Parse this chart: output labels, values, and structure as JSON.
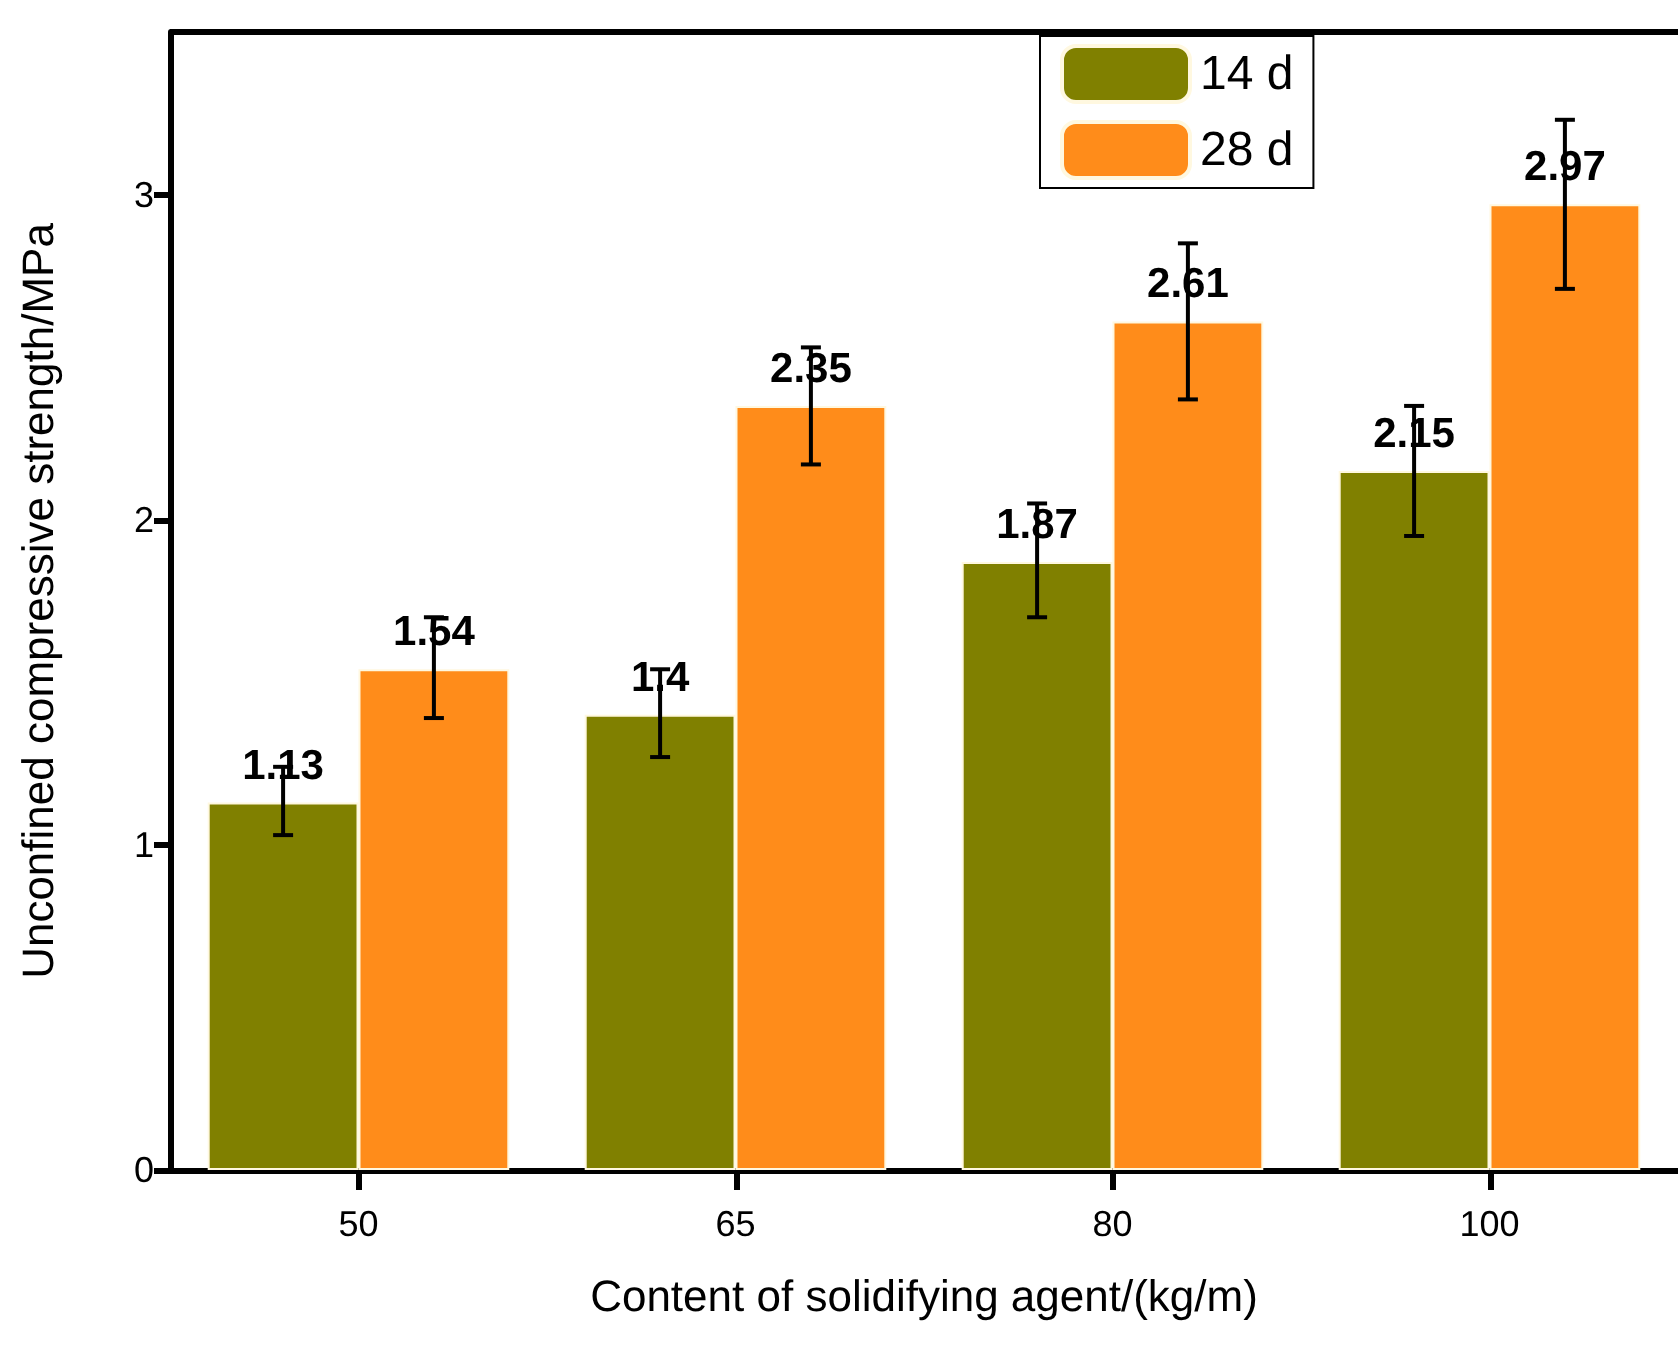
{
  "chart_data": {
    "type": "bar",
    "xlabel": "Content of solidifying agent/(kg/m)",
    "ylabel": "Unconfined compressive strength/MPa",
    "categories": [
      "50",
      "65",
      "80",
      "100"
    ],
    "series": [
      {
        "name": "14 d",
        "color": "#808000",
        "values": [
          1.13,
          1.4,
          1.87,
          2.15
        ],
        "errors": [
          [
            1.03,
            1.24
          ],
          [
            1.27,
            1.54
          ],
          [
            1.7,
            2.05
          ],
          [
            1.95,
            2.35
          ]
        ]
      },
      {
        "name": "28 d",
        "color": "#ff8c1a",
        "values": [
          1.54,
          2.35,
          2.61,
          2.97
        ],
        "errors": [
          [
            1.39,
            1.7
          ],
          [
            2.17,
            2.53
          ],
          [
            2.37,
            2.85
          ],
          [
            2.71,
            3.23
          ]
        ]
      }
    ],
    "ylim": [
      0,
      3.5
    ],
    "yticks": [
      0,
      1,
      2,
      3
    ],
    "data_labels": true,
    "legend": "top right",
    "grid": false
  }
}
